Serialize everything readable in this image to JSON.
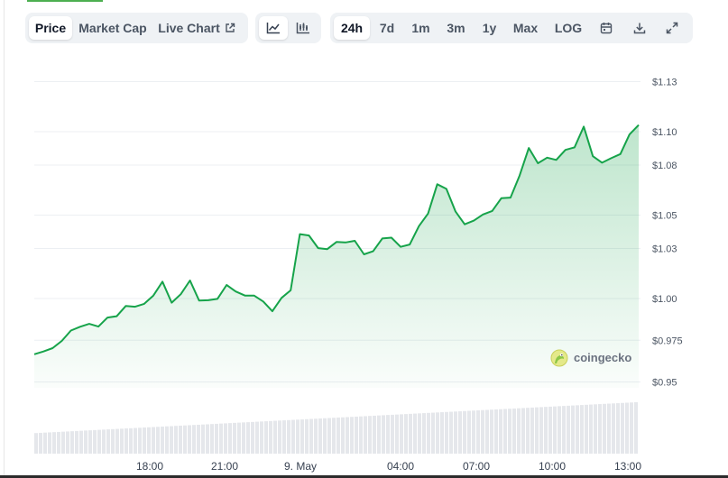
{
  "toolbar": {
    "view_tabs": [
      {
        "label": "Price",
        "active": true
      },
      {
        "label": "Market Cap",
        "active": false
      },
      {
        "label": "Live Chart",
        "active": false,
        "icon": "external-link-icon"
      }
    ],
    "chart_type_buttons": [
      {
        "icon": "line-chart-icon",
        "active": true
      },
      {
        "icon": "candlestick-icon",
        "active": false
      }
    ],
    "range_tabs": [
      {
        "label": "24h",
        "active": true
      },
      {
        "label": "7d",
        "active": false
      },
      {
        "label": "1m",
        "active": false
      },
      {
        "label": "3m",
        "active": false
      },
      {
        "label": "1y",
        "active": false
      },
      {
        "label": "Max",
        "active": false
      },
      {
        "label": "LOG",
        "active": false
      }
    ],
    "tool_icons": [
      "calendar-icon",
      "download-icon",
      "expand-icon"
    ]
  },
  "watermark": {
    "text": "coingecko",
    "icon": "coingecko-logo-icon"
  },
  "colors": {
    "line": "#16a34a",
    "fill_top": "#16a34a",
    "volume": "#e5e7eb",
    "grid": "#eceff3"
  },
  "chart_data": {
    "type": "area",
    "title": "",
    "xlabel": "",
    "ylabel": "",
    "grid": true,
    "y_axis_position": "right",
    "ylim": [
      0.9465,
      1.1335
    ],
    "y_ticks": [
      {
        "value": 1.13,
        "label": "$1.13"
      },
      {
        "value": 1.1,
        "label": "$1.10"
      },
      {
        "value": 1.08,
        "label": "$1.08"
      },
      {
        "value": 1.05,
        "label": "$1.05"
      },
      {
        "value": 1.03,
        "label": "$1.03"
      },
      {
        "value": 1.0,
        "label": "$1.00"
      },
      {
        "value": 0.975,
        "label": "$0.975"
      },
      {
        "value": 0.95,
        "label": "$0.95"
      }
    ],
    "x_ticks": [
      "18:00",
      "21:00",
      "9. May",
      "04:00",
      "07:00",
      "10:00",
      "13:00"
    ],
    "series": [
      {
        "values": [
          0.9666,
          0.9683,
          0.9703,
          0.9746,
          0.9808,
          0.9831,
          0.9848,
          0.9832,
          0.9886,
          0.9894,
          0.9956,
          0.9951,
          0.9968,
          1.0018,
          1.0101,
          0.9975,
          1.0026,
          1.0108,
          0.9988,
          0.999,
          0.9998,
          1.0081,
          1.0042,
          1.0018,
          1.0018,
          0.9982,
          0.9924,
          1.0004,
          1.0049,
          1.0386,
          1.0378,
          1.0302,
          1.0296,
          1.0339,
          1.0336,
          1.0346,
          1.0265,
          1.0283,
          1.036,
          1.0365,
          1.031,
          1.0324,
          1.0434,
          1.0509,
          1.0685,
          1.0657,
          1.0521,
          1.0445,
          1.0467,
          1.0504,
          1.0525,
          1.0601,
          1.0605,
          1.0737,
          1.0902,
          1.0811,
          1.0844,
          1.0831,
          1.0891,
          1.0906,
          1.103,
          1.0853,
          1.0814,
          1.0841,
          1.0866,
          1.0983,
          1.104
        ]
      }
    ],
    "volume_bars": {
      "count": 134,
      "start": 0.4,
      "end": 1.0
    }
  }
}
